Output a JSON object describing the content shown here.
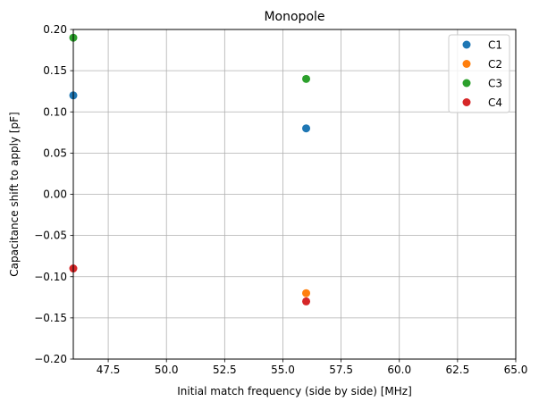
{
  "chart_data": {
    "type": "scatter",
    "title": "Monopole",
    "xlabel": "Initial match frequency (side by side) [MHz]",
    "ylabel": "Capacitance shift to apply [pF]",
    "xlim": [
      46.0,
      65.0
    ],
    "ylim": [
      -0.2,
      0.2
    ],
    "xticks": [
      47.5,
      50.0,
      52.5,
      55.0,
      57.5,
      60.0,
      62.5,
      65.0
    ],
    "xtick_labels": [
      "47.5",
      "50.0",
      "52.5",
      "55.0",
      "57.5",
      "60.0",
      "62.5",
      "65.0"
    ],
    "yticks": [
      -0.2,
      -0.15,
      -0.1,
      -0.05,
      0.0,
      0.05,
      0.1,
      0.15,
      0.2
    ],
    "ytick_labels": [
      "−0.20",
      "−0.15",
      "−0.10",
      "−0.05",
      "0.00",
      "0.05",
      "0.10",
      "0.15",
      "0.20"
    ],
    "grid": true,
    "legend_position": "top-right",
    "series": [
      {
        "name": "C1",
        "color": "#1f77b4",
        "x": [
          46.0,
          56.0
        ],
        "y": [
          0.12,
          0.08
        ]
      },
      {
        "name": "C2",
        "color": "#ff7f0e",
        "x": [
          56.0
        ],
        "y": [
          -0.12
        ]
      },
      {
        "name": "C3",
        "color": "#2ca02c",
        "x": [
          46.0,
          56.0
        ],
        "y": [
          0.19,
          0.14
        ]
      },
      {
        "name": "C4",
        "color": "#d62728",
        "x": [
          46.0,
          56.0
        ],
        "y": [
          -0.09,
          -0.13
        ]
      }
    ]
  }
}
